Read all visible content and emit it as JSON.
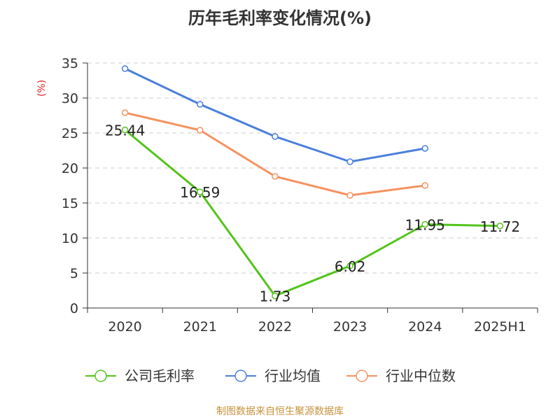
{
  "chart_data": {
    "type": "line",
    "title": "历年毛利率变化情况(%)",
    "unit_label": "(%)",
    "categories": [
      "2020",
      "2021",
      "2022",
      "2023",
      "2024",
      "2025H1"
    ],
    "ylim": [
      0,
      35
    ],
    "yticks": [
      "0",
      "5",
      "10",
      "15",
      "20",
      "25",
      "30",
      "35"
    ],
    "grid": true,
    "legend_position": "bottom",
    "series": [
      {
        "name": "公司毛利率",
        "color": "#52c41a",
        "values": [
          25.44,
          16.59,
          1.73,
          6.02,
          11.95,
          11.72
        ],
        "labels": [
          "25.44",
          "16.59",
          "1.73",
          "6.02",
          "11.95",
          "11.72"
        ]
      },
      {
        "name": "行业均值",
        "color": "#4a7fdc",
        "values": [
          34.2,
          29.1,
          24.5,
          20.9,
          22.8,
          null
        ]
      },
      {
        "name": "行业中位数",
        "color": "#f59260",
        "values": [
          27.9,
          25.4,
          18.8,
          16.1,
          17.5,
          null
        ]
      }
    ],
    "source": "制图数据来自恒生聚源数据库"
  }
}
